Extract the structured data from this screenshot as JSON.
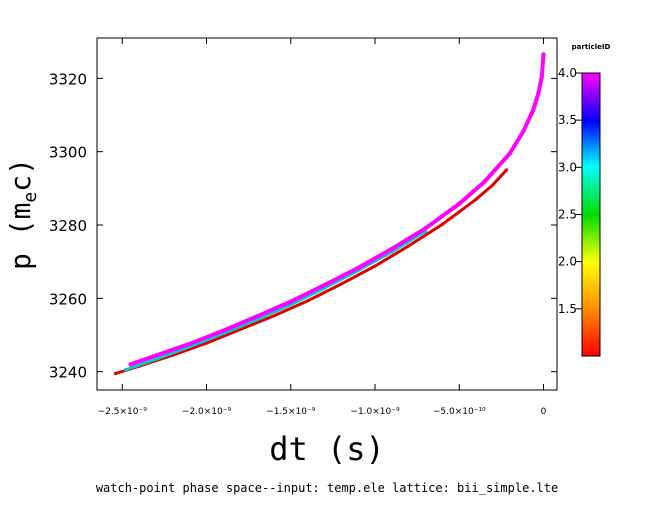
{
  "chart_data": {
    "type": "scatter",
    "xlabel": "dt (s)",
    "ylabel": "p (m",
    "ylabel_sub": "e",
    "ylabel_tail": "c)",
    "caption": "watch-point phase space--input: temp.ele   lattice: bii_simple.lte",
    "xlim": [
      -2.65e-09,
      8e-11
    ],
    "ylim": [
      3235,
      3331
    ],
    "x_ticks": [
      {
        "value": -2.5e-09,
        "label": "−2.5×10⁻⁹"
      },
      {
        "value": -2e-09,
        "label": "−2.0×10⁻⁹"
      },
      {
        "value": -1.5e-09,
        "label": "−1.5×10⁻⁹"
      },
      {
        "value": -1e-09,
        "label": "−1.0×10⁻⁹"
      },
      {
        "value": -5e-10,
        "label": "−5.0×10⁻¹⁰"
      },
      {
        "value": 0,
        "label": "0"
      }
    ],
    "y_ticks": [
      {
        "value": 3240,
        "label": "3240"
      },
      {
        "value": 3260,
        "label": "3260"
      },
      {
        "value": 3280,
        "label": "3280"
      },
      {
        "value": 3300,
        "label": "3300"
      },
      {
        "value": 3320,
        "label": "3320"
      }
    ],
    "colorbar": {
      "title": "particleID",
      "range": [
        1.0,
        4.0
      ],
      "ticks": [
        {
          "value": 1.5,
          "label": "1.5"
        },
        {
          "value": 2.0,
          "label": "2.0"
        },
        {
          "value": 2.5,
          "label": "2.5"
        },
        {
          "value": 3.0,
          "label": "3.0"
        },
        {
          "value": 3.5,
          "label": "3.5"
        },
        {
          "value": 4.0,
          "label": "4.0"
        }
      ]
    },
    "series": [
      {
        "particle": 1,
        "color": "#dd0000",
        "x": [
          -2.54e-09,
          -2.4e-09,
          -2.2e-09,
          -2e-09,
          -1.8e-09,
          -1.6e-09,
          -1.4e-09,
          -1.2e-09,
          -1e-09,
          -8e-10,
          -6e-10,
          -4e-10,
          -3e-10,
          -2.2e-10
        ],
        "y": [
          3239.5,
          3241.5,
          3244.5,
          3247.8,
          3251.5,
          3255.2,
          3259.3,
          3263.9,
          3268.8,
          3274.3,
          3280.2,
          3287.0,
          3291.0,
          3295.0
        ]
      },
      {
        "particle": 3,
        "color": "#00cccc",
        "x": [
          -2.48e-09,
          -2.3e-09,
          -2.1e-09,
          -1.9e-09,
          -1.7e-09,
          -1.5e-09,
          -1.3e-09,
          -1.1e-09,
          -9e-10,
          -7e-10
        ],
        "y": [
          3240.5,
          3243.4,
          3246.8,
          3250.4,
          3254.2,
          3258.3,
          3262.8,
          3267.6,
          3272.7,
          3278.3
        ]
      },
      {
        "particle": 4,
        "color": "#ff00ff",
        "x": [
          -2.45e-09,
          -2.3e-09,
          -2.1e-09,
          -1.9e-09,
          -1.7e-09,
          -1.5e-09,
          -1.3e-09,
          -1.1e-09,
          -9e-10,
          -7e-10,
          -5e-10,
          -3.5e-10,
          -2e-10,
          -1.2e-10,
          -6e-11,
          -3e-11,
          -1e-11,
          0
        ],
        "y": [
          3242.0,
          3244.4,
          3247.6,
          3251.2,
          3255.1,
          3259.1,
          3263.6,
          3268.3,
          3273.5,
          3279.1,
          3285.8,
          3291.8,
          3299.5,
          3305.5,
          3311.5,
          3316.0,
          3320.5,
          3326.5
        ]
      }
    ]
  }
}
